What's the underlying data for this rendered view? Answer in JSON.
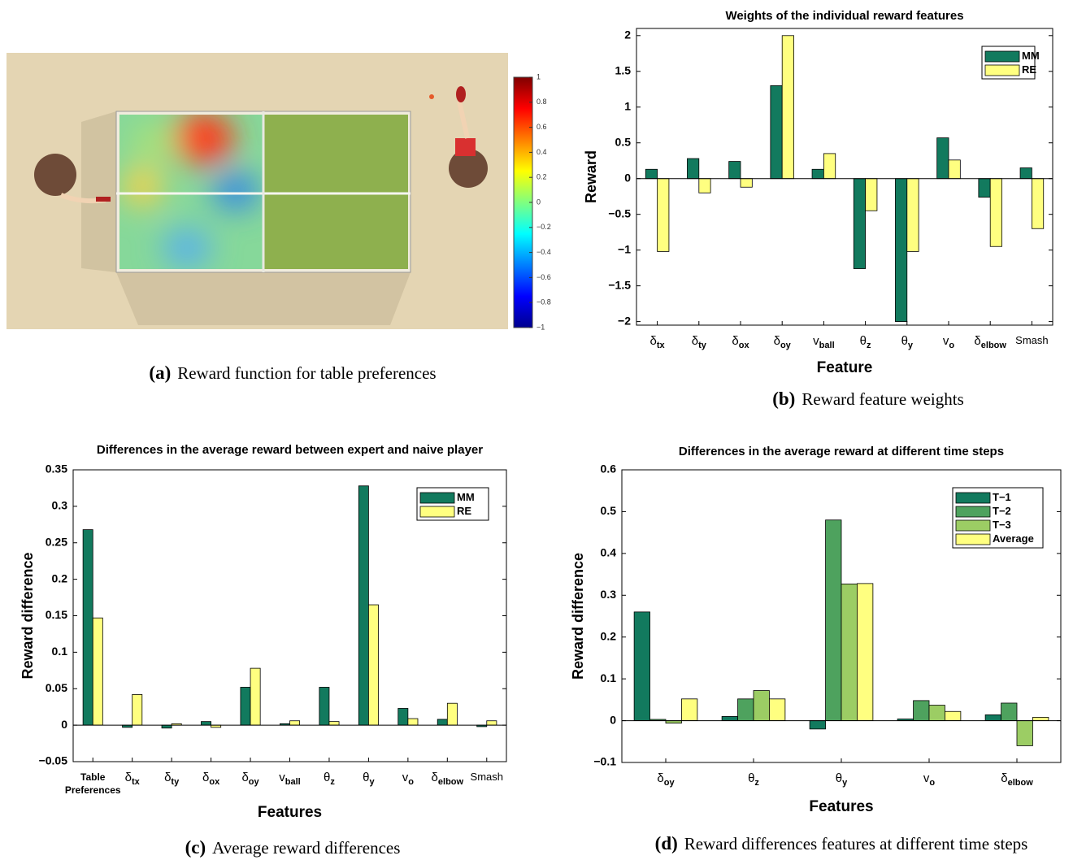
{
  "chart_data": [
    {
      "type": "image",
      "colorbar": {
        "clim": [
          -1,
          1
        ],
        "ticks": [
          1,
          0.8,
          0.6,
          0.4,
          0.2,
          0,
          {
            "value": -0.2,
            "label": "−0.2"
          },
          {
            "value": -0.4,
            "label": "−0.4"
          },
          {
            "value": -0.6,
            "label": "−0.6"
          },
          {
            "value": -0.8,
            "label": "−0.8"
          },
          {
            "value": -1,
            "label": "−1"
          }
        ]
      },
      "caption": {
        "label": "(a)",
        "text": "Reward function for table preferences"
      }
    },
    {
      "type": "bar",
      "title": "Weights of the individual reward features",
      "xlabel": "Feature",
      "ylabel": "Reward",
      "categories": [
        {
          "text": "δ",
          "sub": "tx"
        },
        {
          "text": "δ",
          "sub": "ty"
        },
        {
          "text": "δ",
          "sub": "ox"
        },
        {
          "text": "δ",
          "sub": "oy"
        },
        {
          "text": "v",
          "sub": "ball"
        },
        {
          "text": "θ",
          "sub": "z"
        },
        {
          "text": "θ",
          "sub": "y"
        },
        {
          "text": "v",
          "sub": "o"
        },
        {
          "text": "δ",
          "sub": "elbow"
        },
        {
          "text": "Smash"
        }
      ],
      "series": [
        {
          "name": "MM",
          "color": "#127a5e",
          "values": [
            0.13,
            0.28,
            0.24,
            1.3,
            0.13,
            -1.26,
            -2.0,
            0.57,
            -0.26,
            0.15
          ]
        },
        {
          "name": "RE",
          "color": "#ffff80",
          "values": [
            -1.02,
            -0.2,
            -0.12,
            2.0,
            0.35,
            -0.45,
            -1.02,
            0.26,
            -0.95,
            -0.7
          ]
        }
      ],
      "ylim": [
        -2.05,
        2.1
      ],
      "yticks": [
        {
          "value": -2,
          "label": "−2"
        },
        {
          "value": -1.5,
          "label": "−1.5"
        },
        {
          "value": -1,
          "label": "−1"
        },
        {
          "value": -0.5,
          "label": "−0.5"
        },
        0,
        0.5,
        1,
        1.5,
        2
      ],
      "legend": "upper right",
      "caption": {
        "label": "(b)",
        "text": "Reward feature weights"
      }
    },
    {
      "type": "bar",
      "title": "Differences in the average reward between expert and naive player",
      "xlabel": "Features",
      "ylabel": "Reward difference",
      "categories": [
        {
          "lines": [
            "Table",
            "Preferences"
          ]
        },
        {
          "text": "δ",
          "sub": "tx"
        },
        {
          "text": "δ",
          "sub": "ty"
        },
        {
          "text": "δ",
          "sub": "ox"
        },
        {
          "text": "δ",
          "sub": "oy"
        },
        {
          "text": "v",
          "sub": "ball"
        },
        {
          "text": "θ",
          "sub": "z"
        },
        {
          "text": "θ",
          "sub": "y"
        },
        {
          "text": "v",
          "sub": "o"
        },
        {
          "text": "δ",
          "sub": "elbow"
        },
        {
          "text": "Smash"
        }
      ],
      "series": [
        {
          "name": "MM",
          "color": "#127a5e",
          "values": [
            0.268,
            -0.003,
            -0.004,
            0.005,
            0.052,
            0.002,
            0.052,
            0.328,
            0.023,
            0.008,
            -0.002
          ]
        },
        {
          "name": "RE",
          "color": "#ffff80",
          "values": [
            0.147,
            0.042,
            0.002,
            -0.003,
            0.078,
            0.006,
            0.005,
            0.165,
            0.009,
            0.03,
            0.006
          ]
        }
      ],
      "ylim": [
        -0.05,
        0.35
      ],
      "yticks": [
        {
          "value": -0.05,
          "label": "−0.05"
        },
        0,
        0.05,
        0.1,
        0.15,
        0.2,
        0.25,
        0.3,
        0.35
      ],
      "legend": "upper right",
      "caption": {
        "label": "(c)",
        "text": "Average reward differences"
      }
    },
    {
      "type": "bar",
      "title": "Differences in the average reward at different time steps",
      "xlabel": "Features",
      "ylabel": "Reward difference",
      "categories": [
        {
          "text": "δ",
          "sub": "oy"
        },
        {
          "text": "θ",
          "sub": "z"
        },
        {
          "text": "θ",
          "sub": "y"
        },
        {
          "text": "v",
          "sub": "o"
        },
        {
          "text": "δ",
          "sub": "elbow"
        }
      ],
      "series": [
        {
          "name": "T−1",
          "color": "#127a5e",
          "values": [
            0.26,
            0.01,
            -0.02,
            0.004,
            0.014
          ]
        },
        {
          "name": "T−2",
          "color": "#4ea25e",
          "values": [
            0.003,
            0.052,
            0.48,
            0.048,
            0.042
          ]
        },
        {
          "name": "T−3",
          "color": "#9ccd64",
          "values": [
            -0.006,
            0.072,
            0.327,
            0.037,
            -0.06
          ]
        },
        {
          "name": "Average",
          "color": "#ffff80",
          "values": [
            0.052,
            0.052,
            0.328,
            0.022,
            0.008
          ]
        }
      ],
      "ylim": [
        -0.1,
        0.6
      ],
      "yticks": [
        {
          "value": -0.1,
          "label": "−0.1"
        },
        0,
        0.1,
        0.2,
        0.3,
        0.4,
        0.5,
        0.6
      ],
      "legend": "upper right",
      "caption": {
        "label": "(d)",
        "text": "Reward differences features at different time steps"
      }
    }
  ]
}
